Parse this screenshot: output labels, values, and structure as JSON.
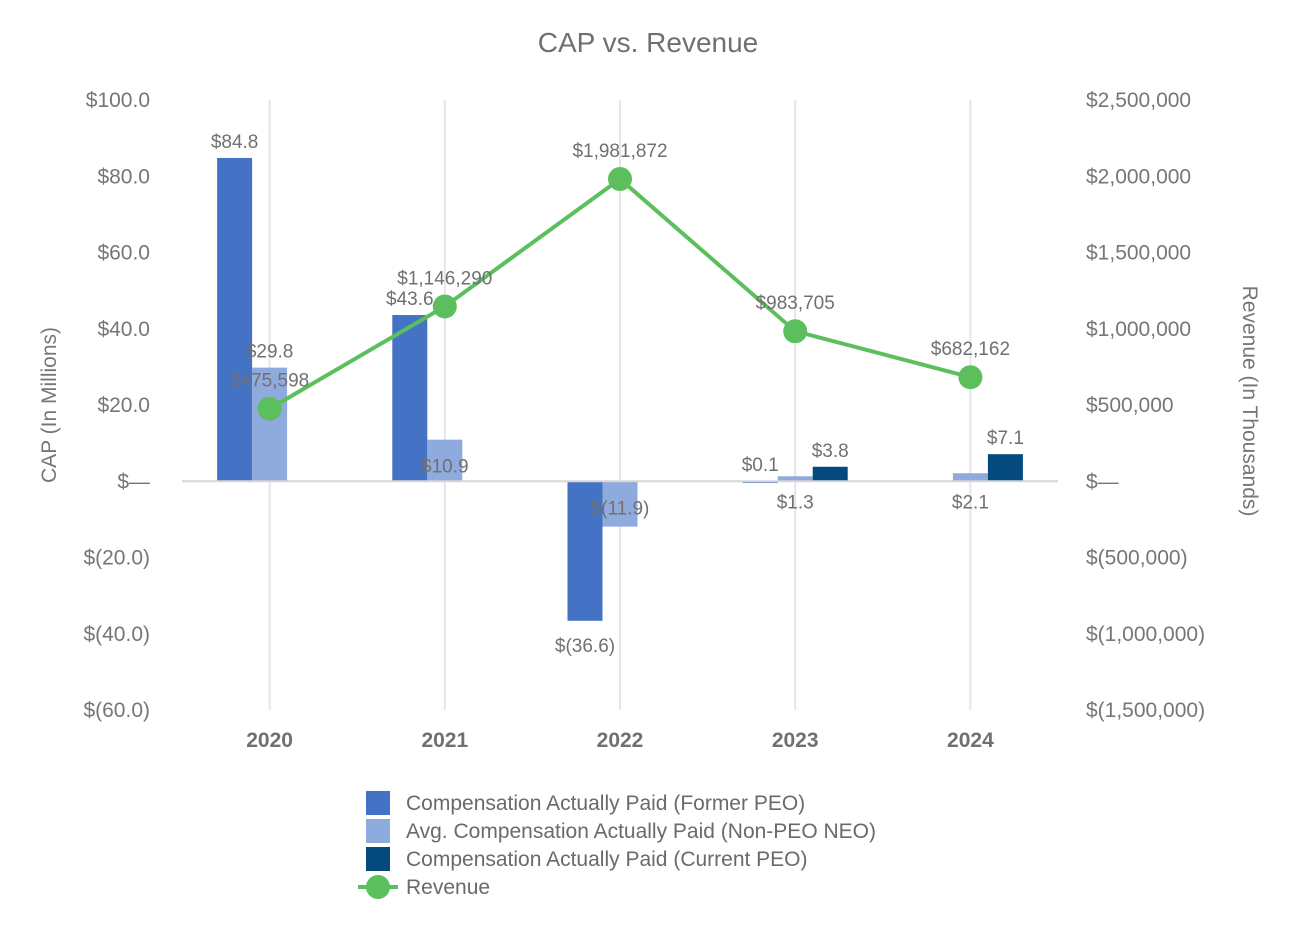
{
  "chart_data": {
    "type": "bar",
    "title": "CAP vs. Revenue",
    "categories": [
      "2020",
      "2021",
      "2022",
      "2023",
      "2024"
    ],
    "ylabel": "CAP (In Millions)",
    "y2label": "Revenue (In Thousands)",
    "ylim": [
      -60,
      100
    ],
    "y2lim": [
      -1500000,
      2500000
    ],
    "yticks": [
      {
        "value": 100,
        "label": "$100.0"
      },
      {
        "value": 80,
        "label": "$80.0"
      },
      {
        "value": 60,
        "label": "$60.0"
      },
      {
        "value": 40,
        "label": "$40.0"
      },
      {
        "value": 20,
        "label": "$20.0"
      },
      {
        "value": 0,
        "label": "$—"
      },
      {
        "value": -20,
        "label": "$(20.0)"
      },
      {
        "value": -40,
        "label": "$(40.0)"
      },
      {
        "value": -60,
        "label": "$(60.0)"
      }
    ],
    "y2ticks": [
      {
        "value": 2500000,
        "label": "$2,500,000"
      },
      {
        "value": 2000000,
        "label": "$2,000,000"
      },
      {
        "value": 1500000,
        "label": "$1,500,000"
      },
      {
        "value": 1000000,
        "label": "$1,000,000"
      },
      {
        "value": 500000,
        "label": "$500,000"
      },
      {
        "value": 0,
        "label": "$—"
      },
      {
        "value": -500000,
        "label": "$(500,000)"
      },
      {
        "value": -1000000,
        "label": "$(1,000,000)"
      },
      {
        "value": -1500000,
        "label": "$(1,500,000)"
      }
    ],
    "series": [
      {
        "name": "Compensation Actually Paid (Former PEO)",
        "kind": "bar",
        "axis": "left",
        "color": "#4472c4",
        "values": [
          84.8,
          43.6,
          -36.6,
          0.1,
          null
        ],
        "labels": [
          "$84.8",
          "$43.6",
          "$(36.6)",
          "$0.1",
          null
        ]
      },
      {
        "name": "Avg. Compensation Actually Paid (Non-PEO NEO)",
        "kind": "bar",
        "axis": "left",
        "color": "#8faadc",
        "values": [
          29.8,
          10.9,
          -11.9,
          1.3,
          2.1
        ],
        "labels": [
          "$29.8",
          "$10.9",
          "$(11.9)",
          "$1.3",
          "$2.1"
        ]
      },
      {
        "name": "Compensation Actually Paid (Current PEO)",
        "kind": "bar",
        "axis": "left",
        "color": "#044a7e",
        "values": [
          null,
          null,
          null,
          3.8,
          7.1
        ],
        "labels": [
          null,
          null,
          null,
          "$3.8",
          "$7.1"
        ]
      },
      {
        "name": "Revenue",
        "kind": "line",
        "axis": "right",
        "color": "#5cbf5e",
        "values": [
          475598,
          1146290,
          1981872,
          983705,
          682162
        ],
        "labels": [
          "$475,598",
          "$1,146,290",
          "$1,981,872",
          "$983,705",
          "$682,162"
        ]
      }
    ],
    "legend_position": "bottom"
  }
}
